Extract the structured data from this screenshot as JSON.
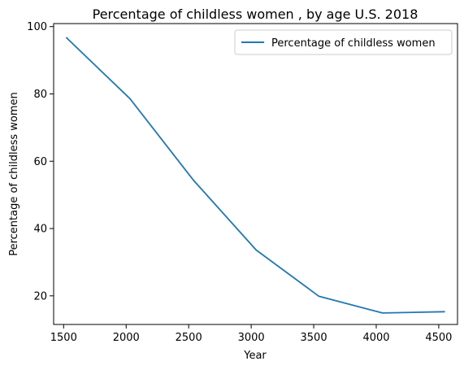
{
  "chart_data": {
    "type": "line",
    "title": "Percentage of childless women , by age U.S. 2018",
    "xlabel": "Year",
    "ylabel": "Percentage of childless women",
    "x": [
      1520,
      2030,
      2540,
      3040,
      3540,
      4050,
      4550
    ],
    "series": [
      {
        "name": "Percentage of childless women",
        "values": [
          96.8,
          78.6,
          54.3,
          33.6,
          19.9,
          14.9,
          15.3
        ],
        "color": "#1f77b4"
      }
    ],
    "xlim": [
      1420,
      4650
    ],
    "ylim": [
      11.5,
      100.9
    ],
    "xticks": [
      1500,
      2000,
      2500,
      3000,
      3500,
      4000,
      4500
    ],
    "xtick_labels": [
      "1500",
      "2000",
      "2500",
      "3000",
      "3500",
      "4000",
      "4500"
    ],
    "yticks": [
      20,
      40,
      60,
      80,
      100
    ],
    "ytick_labels": [
      "20",
      "40",
      "60",
      "80",
      "100"
    ],
    "grid": false,
    "legend": "top-right"
  }
}
